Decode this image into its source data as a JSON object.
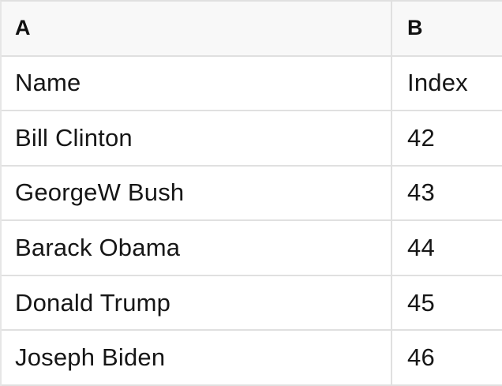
{
  "columns": {
    "a": "A",
    "b": "B"
  },
  "rows": [
    {
      "name": "Name",
      "index": "Index"
    },
    {
      "name": "Bill Clinton",
      "index": "42"
    },
    {
      "name": "GeorgeW Bush",
      "index": "43"
    },
    {
      "name": "Barack Obama",
      "index": "44"
    },
    {
      "name": "Donald Trump",
      "index": "45"
    },
    {
      "name": "Joseph Biden",
      "index": "46"
    }
  ],
  "colors": {
    "header_bg": "#f8f8f8",
    "border": "#e0e0e0",
    "text": "#161616",
    "row_bg": "#ffffff"
  }
}
